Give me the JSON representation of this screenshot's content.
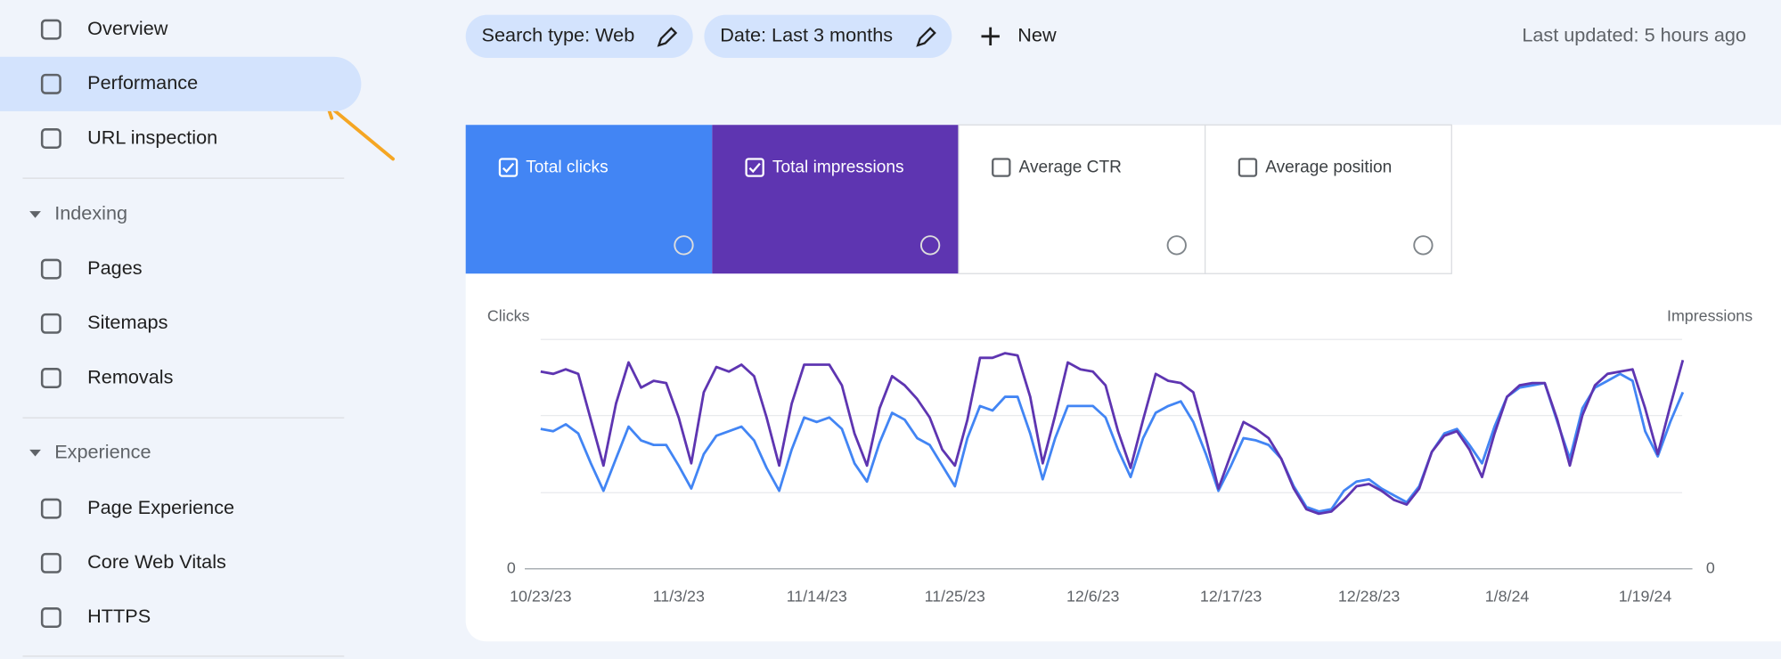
{
  "nav": {
    "items": [
      "Overview",
      "Performance",
      "URL inspection"
    ],
    "active": 1,
    "sections": [
      {
        "title": "Indexing",
        "items": [
          "Pages",
          "Sitemaps",
          "Removals"
        ]
      },
      {
        "title": "Experience",
        "items": [
          "Page Experience",
          "Core Web Vitals",
          "HTTPS"
        ]
      }
    ]
  },
  "filters": [
    "Search type: Web",
    "Date: Last 3 months"
  ],
  "new_button": "New",
  "last_updated": "Last updated: 5 hours ago",
  "metric_cards": [
    {
      "label": "Total clicks",
      "checked": true
    },
    {
      "label": "Total impressions",
      "checked": true
    },
    {
      "label": "Average CTR",
      "checked": false
    },
    {
      "label": "Average position",
      "checked": false
    }
  ],
  "chart_data": {
    "type": "line",
    "categories": [
      "10/23/23",
      null,
      null,
      null,
      null,
      null,
      null,
      null,
      null,
      null,
      null,
      "11/3/23",
      null,
      null,
      null,
      null,
      null,
      null,
      null,
      null,
      null,
      null,
      "11/14/23",
      null,
      null,
      null,
      null,
      null,
      null,
      null,
      null,
      null,
      null,
      "11/25/23",
      null,
      null,
      null,
      null,
      null,
      null,
      null,
      null,
      null,
      null,
      "12/6/23",
      null,
      null,
      null,
      null,
      null,
      null,
      null,
      null,
      null,
      null,
      "12/17/23",
      null,
      null,
      null,
      null,
      null,
      null,
      null,
      null,
      null,
      null,
      "12/28/23",
      null,
      null,
      null,
      null,
      null,
      null,
      null,
      null,
      null,
      null,
      "1/8/24",
      null,
      null,
      null,
      null,
      null,
      null,
      null,
      null,
      null,
      null,
      "1/19/24",
      null,
      null,
      null
    ],
    "series": [
      {
        "name": "Clicks",
        "color": "#4285f4",
        "values": [
          61,
          60,
          63,
          59,
          46,
          34,
          48,
          62,
          56,
          54,
          54,
          45,
          35,
          50,
          58,
          60,
          62,
          56,
          44,
          34,
          52,
          66,
          64,
          66,
          61,
          46,
          38,
          55,
          68,
          65,
          57,
          54,
          45,
          36,
          57,
          71,
          69,
          75,
          75,
          59,
          39,
          57,
          71,
          71,
          71,
          66,
          52,
          40,
          57,
          68,
          71,
          73,
          64,
          50,
          34,
          45,
          57,
          56,
          54,
          48,
          36,
          27,
          25,
          26,
          34,
          38,
          39,
          35,
          32,
          29,
          36,
          51,
          59,
          61,
          54,
          46,
          62,
          75,
          79,
          80,
          81,
          64,
          48,
          70,
          79,
          82,
          85,
          82,
          60,
          49,
          64,
          77
        ]
      },
      {
        "name": "Impressions",
        "color": "#5e35b1",
        "axis": "y2",
        "values": [
          86,
          85,
          87,
          85,
          65,
          45,
          72,
          90,
          79,
          82,
          81,
          66,
          46,
          77,
          88,
          86,
          89,
          84,
          66,
          45,
          72,
          89,
          89,
          89,
          80,
          59,
          45,
          70,
          84,
          80,
          74,
          66,
          52,
          45,
          65,
          92,
          92,
          94,
          93,
          75,
          46,
          67,
          90,
          87,
          86,
          80,
          60,
          44,
          65,
          85,
          82,
          81,
          77,
          57,
          35,
          50,
          64,
          61,
          57,
          48,
          35,
          26,
          24,
          25,
          30,
          36,
          37,
          34,
          30,
          28,
          35,
          51,
          58,
          60,
          52,
          40,
          59,
          75,
          80,
          81,
          81,
          65,
          45,
          67,
          80,
          85,
          86,
          87,
          70,
          50,
          71,
          91
        ]
      }
    ],
    "ylim": [
      0,
      100
    ],
    "yticks": [
      0
    ],
    "y2lim": [
      0,
      100
    ],
    "y2ticks": [
      0
    ],
    "grid": true
  }
}
